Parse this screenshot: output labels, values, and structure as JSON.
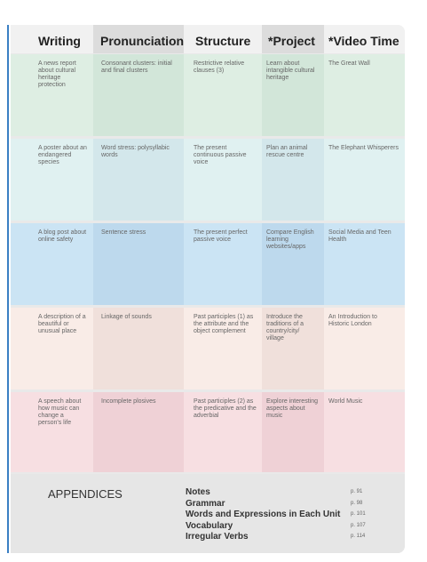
{
  "header": {
    "columns": [
      "Writing",
      "Pronunciation",
      "Structure",
      "*Project",
      "*Video Time"
    ]
  },
  "table": {
    "rows": [
      [
        "A news report about cultural heritage protection",
        "Consonant clusters: initial and final clusters",
        "Restrictive relative clauses (3)",
        "Learn about intangible cultural heritage",
        "The Great Wall"
      ],
      [
        "A poster about an endangered species",
        "Word stress: polysyllabic words",
        "The present continuous passive voice",
        "Plan an animal rescue centre",
        "The Elephant Whisperers"
      ],
      [
        "A blog post about online safety",
        "Sentence stress",
        "The present perfect passive voice",
        "Compare English learning websites/apps",
        "Social Media and Teen Health"
      ],
      [
        "A description of a beautiful or unusual place",
        "Linkage of sounds",
        "Past participles (1) as the attribute and the object complement",
        "Introduce the traditions of a country/city/ village",
        "An Introduction to Historic London"
      ],
      [
        "A speech about how music can change a person's life",
        "Incomplete plosives",
        "Past participles (2) as the predicative and the adverbial",
        "Explore interesting aspects about music",
        "World Music"
      ]
    ]
  },
  "appendices": {
    "title": "APPENDICES",
    "items": [
      {
        "name": "Notes",
        "page": "p. 91"
      },
      {
        "name": "Grammar",
        "page": "p. 98"
      },
      {
        "name": "Words and Expressions in Each Unit",
        "page": "p. 101"
      },
      {
        "name": "Vocabulary",
        "page": "p. 107"
      },
      {
        "name": "Irregular Verbs",
        "page": "p. 114"
      }
    ]
  }
}
